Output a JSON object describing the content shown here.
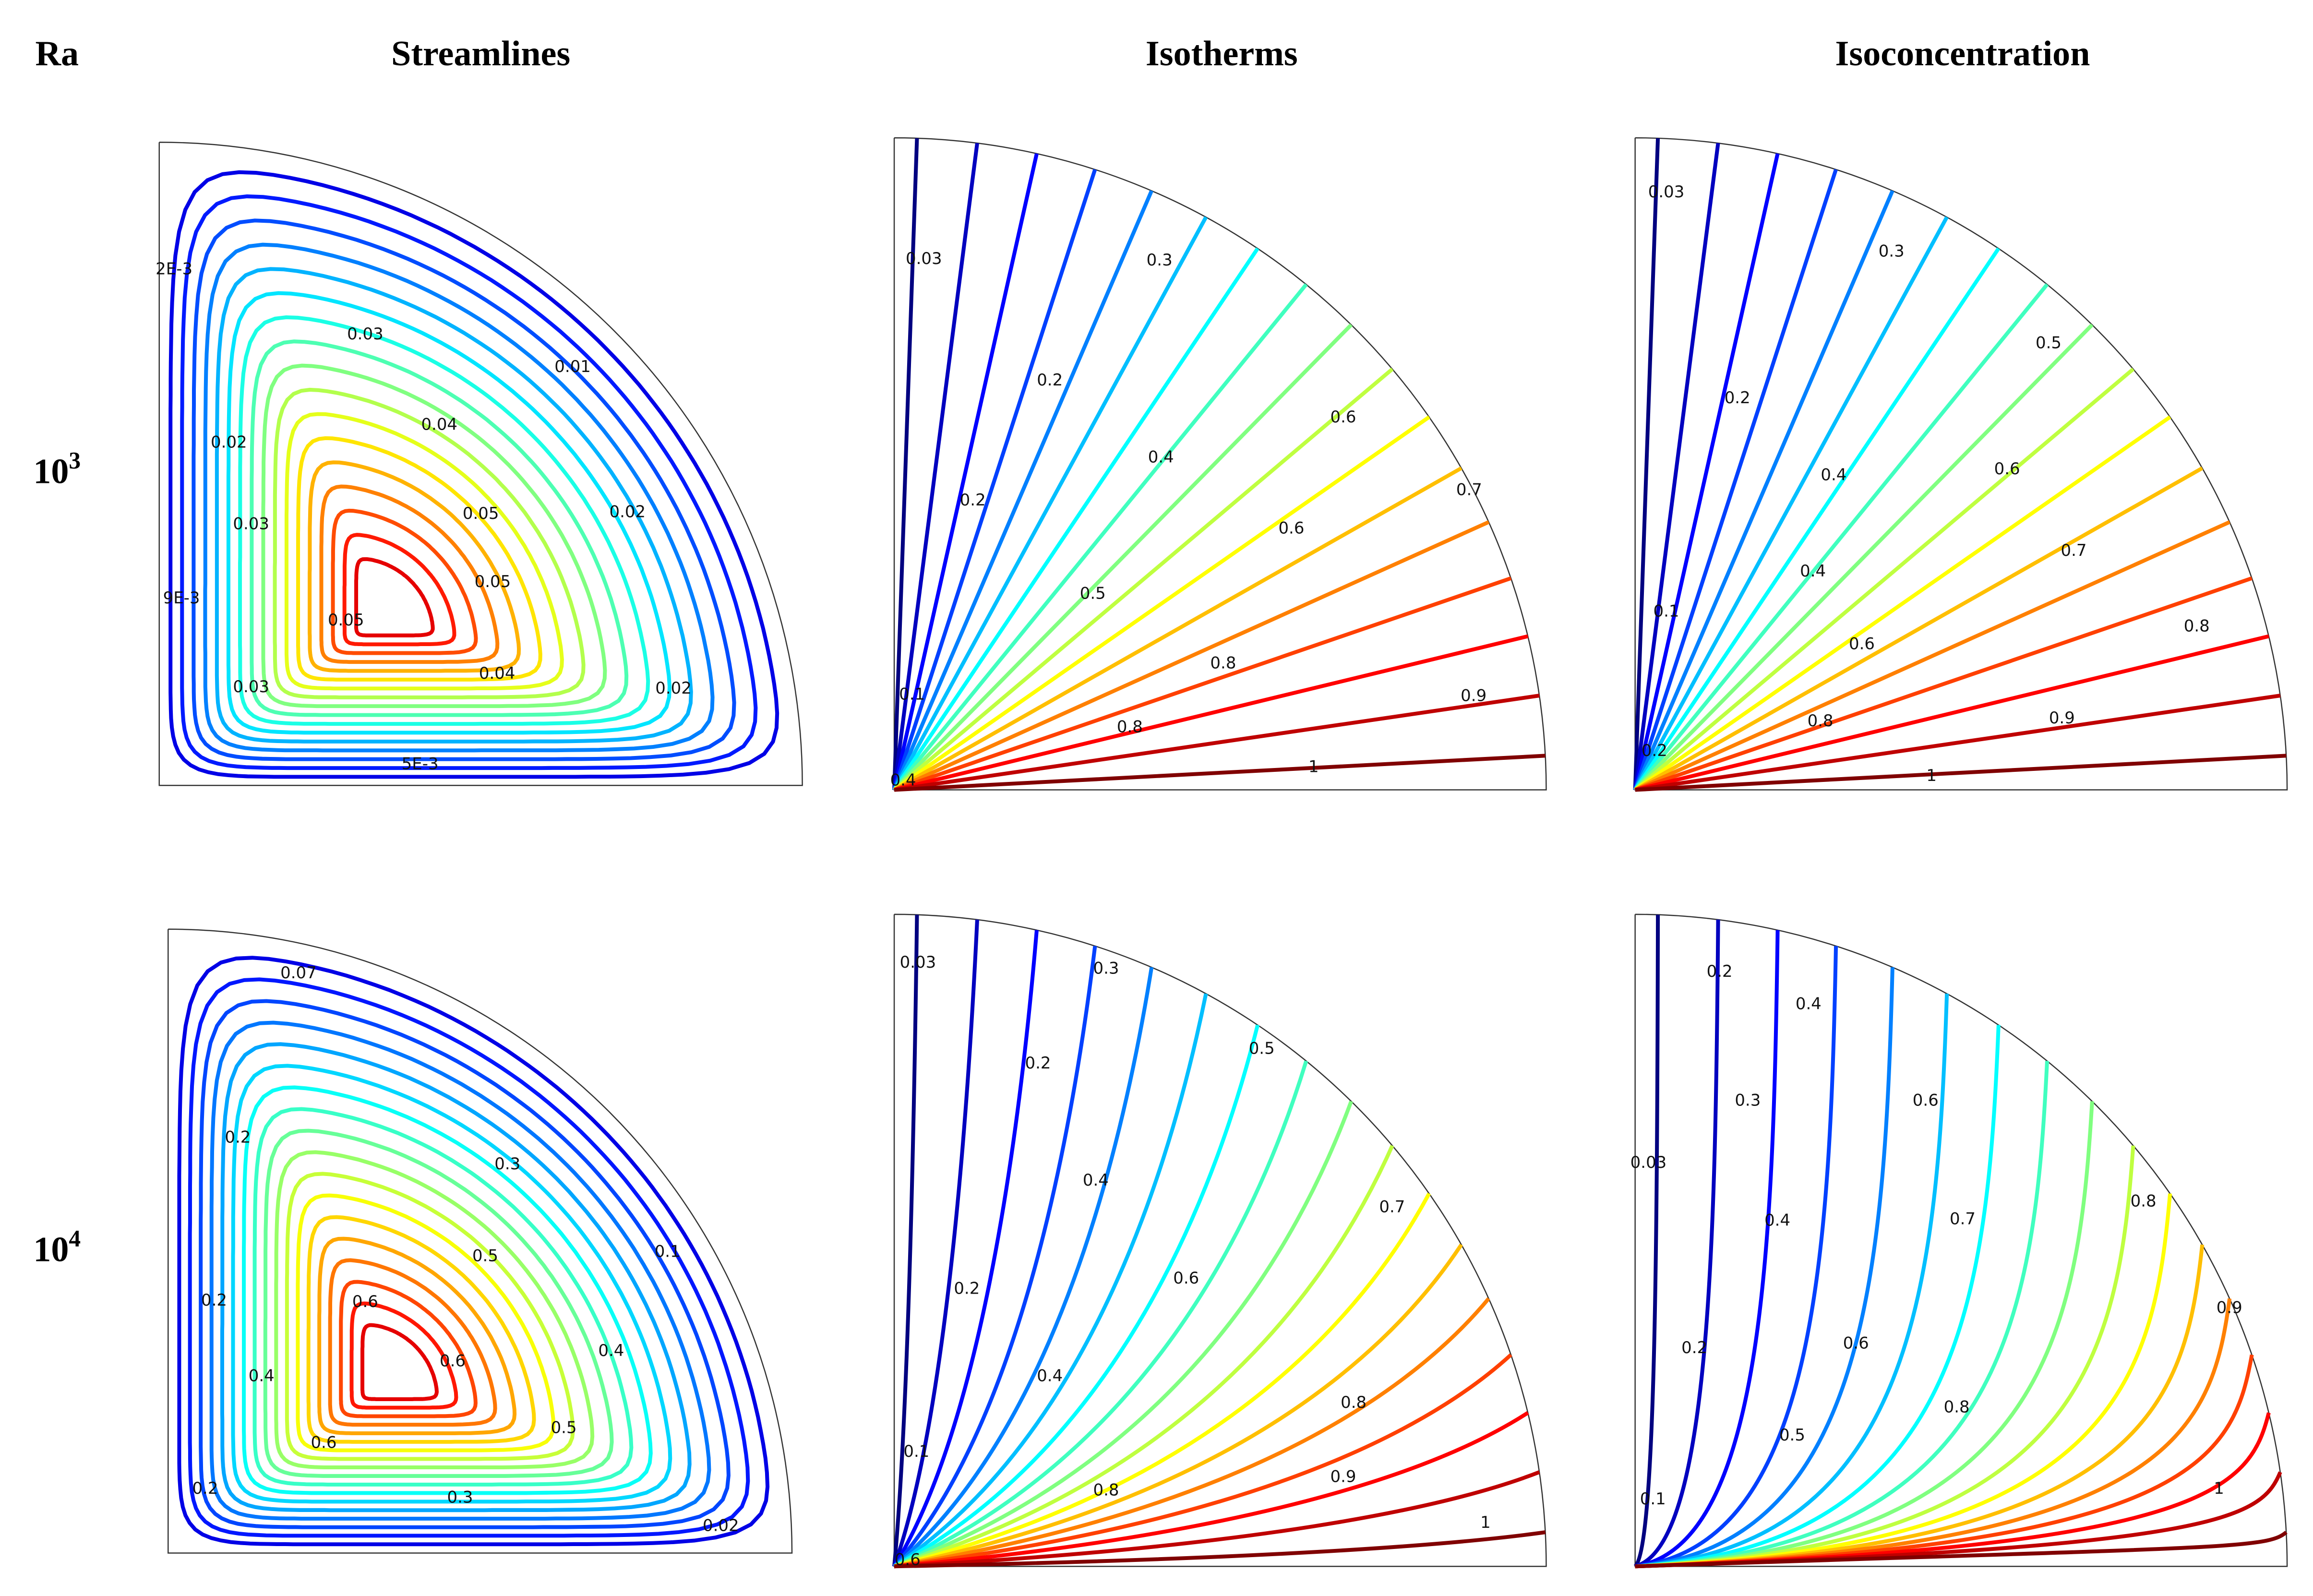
{
  "header": {
    "ra": "Ra",
    "columns": [
      "Streamlines",
      "Isotherms",
      "Isoconcentration"
    ]
  },
  "rows": [
    {
      "label_base": "10",
      "label_exp": "3",
      "panels": [
        {
          "labels": [
            "2E-3",
            "0.03",
            "0.01",
            "0.02",
            "0.04",
            "0.03",
            "0.05",
            "0.02",
            "9E-3",
            "0.05",
            "0.05",
            "0.04",
            "0.03",
            "0.02",
            "5E-3"
          ]
        },
        {
          "labels": [
            "0.03",
            "0.3",
            "0.2",
            "0.6",
            "0.4",
            "0.7",
            "0.2",
            "0.6",
            "0.5",
            "0.8",
            "0.1",
            "0.9",
            "0.8",
            "1",
            "0.4"
          ]
        },
        {
          "labels": [
            "0.03",
            "0.3",
            "0.5",
            "0.2",
            "0.4",
            "0.6",
            "0.7",
            "0.4",
            "0.1",
            "0.8",
            "0.6",
            "0.9",
            "0.8",
            "0.2",
            "1"
          ]
        }
      ]
    },
    {
      "label_base": "10",
      "label_exp": "4",
      "panels": [
        {
          "labels": [
            "0.07",
            "0.2",
            "0.3",
            "0.1",
            "0.5",
            "0.6",
            "0.2",
            "0.4",
            "0.6",
            "0.4",
            "0.5",
            "0.6",
            "0.2",
            "0.3",
            "0.02"
          ]
        },
        {
          "labels": [
            "0.03",
            "0.3",
            "0.2",
            "0.5",
            "0.4",
            "0.7",
            "0.6",
            "0.2",
            "0.4",
            "0.8",
            "0.1",
            "0.9",
            "0.8",
            "1",
            "0.6"
          ]
        },
        {
          "labels": [
            "0.2",
            "0.4",
            "0.6",
            "0.3",
            "0.03",
            "0.8",
            "0.4",
            "0.7",
            "0.9",
            "0.6",
            "0.2",
            "0.8",
            "0.5",
            "1",
            "0.1"
          ]
        }
      ]
    }
  ]
}
